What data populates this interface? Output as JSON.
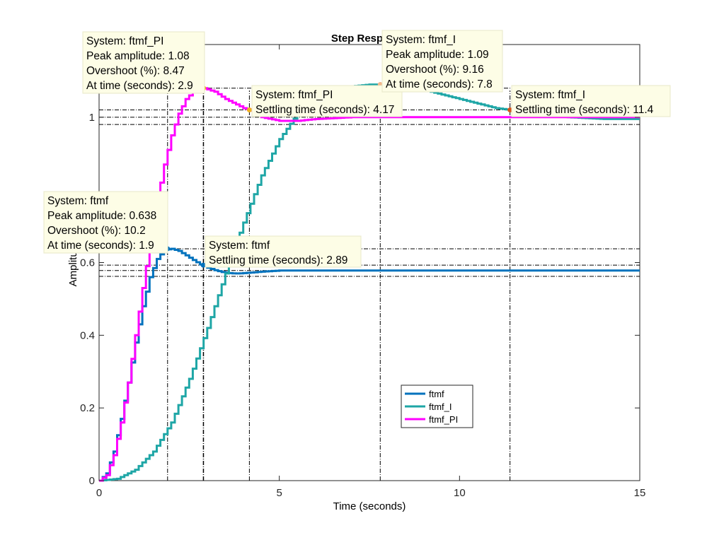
{
  "chart_data": {
    "type": "line",
    "title": "Step Response",
    "xlabel": "Time (seconds)",
    "ylabel": "Amplitude",
    "xlim": [
      0,
      15
    ],
    "ylim": [
      0,
      1.2
    ],
    "xticks": [
      0,
      5,
      10,
      15
    ],
    "yticks": [
      0,
      0.2,
      0.4,
      0.6,
      1
    ],
    "ytick_labels": [
      "0",
      "0.2",
      "0.4",
      "0.6",
      "1"
    ],
    "grid": false,
    "legend_position": "lower-center",
    "series": [
      {
        "name": "ftmf",
        "color": "#0072BD",
        "step": true,
        "final_value": 0.578,
        "x": [
          0,
          0.2,
          0.4,
          0.6,
          0.8,
          1.0,
          1.2,
          1.4,
          1.6,
          1.8,
          2.0,
          2.2,
          2.4,
          2.6,
          2.8,
          3.0,
          3.2,
          3.4,
          3.6,
          3.8,
          4.0,
          4.5,
          5.0,
          6.0,
          8.0,
          10.0,
          12.0,
          15.0
        ],
        "y": [
          0,
          0.02,
          0.08,
          0.17,
          0.27,
          0.38,
          0.48,
          0.56,
          0.61,
          0.635,
          0.638,
          0.632,
          0.62,
          0.607,
          0.595,
          0.586,
          0.579,
          0.574,
          0.571,
          0.57,
          0.571,
          0.575,
          0.578,
          0.578,
          0.578,
          0.578,
          0.578,
          0.578
        ]
      },
      {
        "name": "ftmf_I",
        "color": "#1EA6A6",
        "step": true,
        "final_value": 1.0,
        "x": [
          0,
          0.5,
          1.0,
          1.5,
          2.0,
          2.5,
          3.0,
          3.5,
          4.0,
          4.5,
          5.0,
          5.5,
          6.0,
          6.5,
          7.0,
          7.5,
          7.8,
          8.5,
          9.0,
          10.0,
          11.0,
          11.4,
          12.0,
          13.0,
          14.0,
          15.0
        ],
        "y": [
          0,
          0.005,
          0.03,
          0.08,
          0.16,
          0.28,
          0.42,
          0.57,
          0.71,
          0.84,
          0.94,
          1.01,
          1.05,
          1.075,
          1.085,
          1.09,
          1.09,
          1.085,
          1.075,
          1.05,
          1.025,
          1.02,
          1.01,
          1.0,
          0.995,
          0.995
        ]
      },
      {
        "name": "ftmf_PI",
        "color": "#FF00FF",
        "step": true,
        "final_value": 1.0,
        "x": [
          0,
          0.2,
          0.4,
          0.6,
          0.8,
          1.0,
          1.2,
          1.4,
          1.6,
          1.8,
          2.0,
          2.2,
          2.4,
          2.6,
          2.8,
          2.9,
          3.2,
          3.5,
          4.0,
          4.17,
          4.5,
          5.0,
          5.5,
          6.0,
          7.0,
          8.0,
          10.0,
          12.0,
          15.0
        ],
        "y": [
          0,
          0.015,
          0.07,
          0.16,
          0.27,
          0.4,
          0.53,
          0.65,
          0.77,
          0.87,
          0.95,
          1.01,
          1.05,
          1.07,
          1.08,
          1.08,
          1.07,
          1.05,
          1.025,
          1.02,
          1.0,
          0.99,
          0.99,
          0.995,
          1.0,
          1.0,
          1.0,
          1.0,
          1.0
        ]
      }
    ],
    "annotations": [
      {
        "id": "tip-ftmf-peak",
        "series": "ftmf",
        "point_x": 1.9,
        "point_y": 0.638,
        "lines": [
          "System: ftmf",
          "Peak amplitude: 0.638",
          "Overshoot (%): 10.2",
          "At time (seconds): 1.9"
        ]
      },
      {
        "id": "tip-ftmf-settle",
        "series": "ftmf",
        "point_x": 2.89,
        "point_y": 0.593,
        "lines": [
          "System: ftmf",
          "Settling time (seconds): 2.89"
        ]
      },
      {
        "id": "tip-pi-peak",
        "series": "ftmf_PI",
        "point_x": 2.9,
        "point_y": 1.08,
        "lines": [
          "System: ftmf_PI",
          "Peak amplitude: 1.08",
          "Overshoot (%): 8.47",
          "At time (seconds): 2.9"
        ]
      },
      {
        "id": "tip-pi-settle",
        "series": "ftmf_PI",
        "point_x": 4.17,
        "point_y": 1.02,
        "lines": [
          "System: ftmf_PI",
          "Settling time (seconds): 4.17"
        ]
      },
      {
        "id": "tip-i-peak",
        "series": "ftmf_I",
        "point_x": 7.8,
        "point_y": 1.09,
        "lines": [
          "System: ftmf_I",
          "Peak amplitude: 1.09",
          "Overshoot (%): 9.16",
          "At time (seconds): 7.8"
        ]
      },
      {
        "id": "tip-i-settle",
        "series": "ftmf_I",
        "point_x": 11.4,
        "point_y": 1.02,
        "lines": [
          "System: ftmf_I",
          "Settling time (seconds): 11.4"
        ]
      }
    ],
    "reference_lines": {
      "horizontal": [
        1.08,
        1.02,
        1.0,
        0.98,
        0.638,
        0.593,
        0.578,
        0.562
      ],
      "vertical": [
        1.9,
        2.89,
        2.9,
        4.17,
        7.8,
        11.4
      ]
    }
  }
}
